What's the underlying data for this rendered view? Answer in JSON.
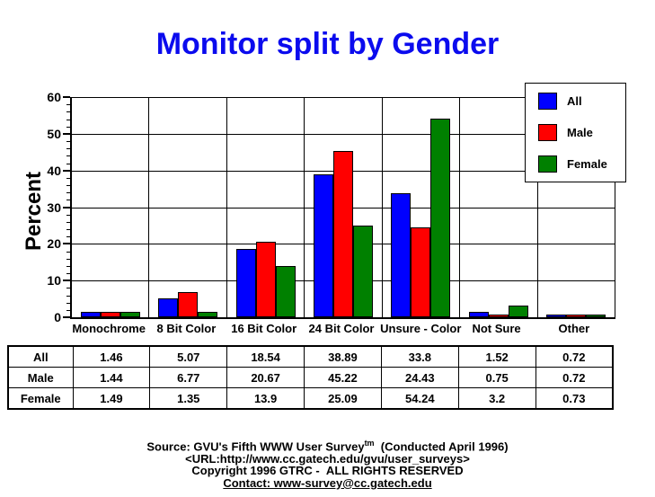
{
  "title": "Monitor split by Gender",
  "colors": {
    "title": "#0b0bee",
    "all": "#0000ff",
    "male": "#ff0000",
    "female": "#008000",
    "axis": "#000000",
    "background": "#ffffff"
  },
  "chart_data": {
    "type": "bar",
    "title": "Monitor split by Gender",
    "xlabel": "",
    "ylabel": "Percent",
    "ylim": [
      0,
      60
    ],
    "ytick_interval": 10,
    "ytick_minor_interval": 2,
    "grid": true,
    "legend_position": "top-right",
    "categories": [
      "Monochrome",
      "8 Bit Color",
      "16 Bit Color",
      "24 Bit Color",
      "Unsure - Color",
      "Not Sure",
      "Other"
    ],
    "series": [
      {
        "name": "All",
        "color": "#0000ff",
        "values": [
          1.46,
          5.07,
          18.54,
          38.89,
          33.8,
          1.52,
          0.72
        ]
      },
      {
        "name": "Male",
        "color": "#ff0000",
        "values": [
          1.44,
          6.77,
          20.67,
          45.22,
          24.43,
          0.75,
          0.72
        ]
      },
      {
        "name": "Female",
        "color": "#008000",
        "values": [
          1.49,
          1.35,
          13.9,
          25.09,
          54.24,
          3.2,
          0.73
        ]
      }
    ]
  },
  "table": {
    "row_headers": [
      "All",
      "Male",
      "Female"
    ],
    "columns": [
      "Monochrome",
      "8 Bit Color",
      "16 Bit Color",
      "24 Bit Color",
      "Unsure - Color",
      "Not Sure",
      "Other"
    ],
    "rows": [
      [
        "1.46",
        "5.07",
        "18.54",
        "38.89",
        "33.8",
        "1.52",
        "0.72"
      ],
      [
        "1.44",
        "6.77",
        "20.67",
        "45.22",
        "24.43",
        "0.75",
        "0.72"
      ],
      [
        "1.49",
        "1.35",
        "13.9",
        "25.09",
        "54.24",
        "3.2",
        "0.73"
      ]
    ]
  },
  "footer": {
    "line1_prefix": "Source: GVU's Fifth WWW User Survey",
    "line1_sup": "tm",
    "line1_suffix": "  (Conducted April 1996)",
    "line2": "<URL:http://www.cc.gatech.edu/gvu/user_surveys>",
    "line3": "Copyright 1996 GTRC -  ALL RIGHTS RESERVED",
    "line4": "Contact: www-survey@cc.gatech.edu"
  }
}
